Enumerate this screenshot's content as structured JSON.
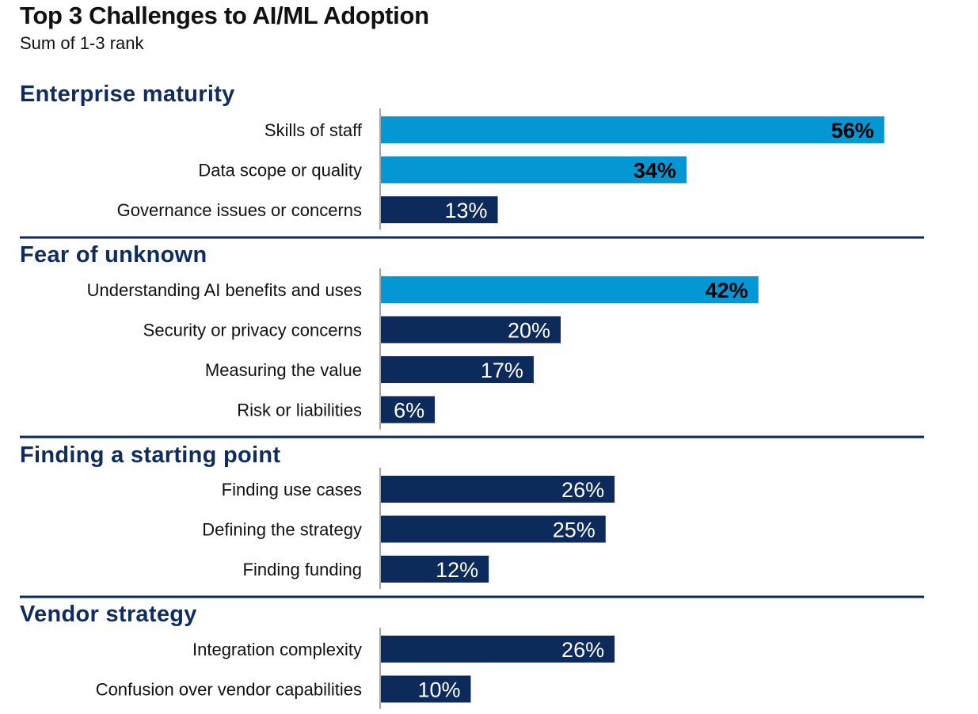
{
  "chart_data": {
    "type": "bar",
    "orientation": "horizontal",
    "title": "Top 3 Challenges to AI/ML Adoption",
    "subtitle": "Sum of 1-3 rank",
    "unit": "%",
    "xlim": [
      0,
      60
    ],
    "grid": false,
    "colors": {
      "highlight": "#0397d4",
      "default": "#0d2b5a",
      "group_title": "#0f2c5c",
      "separator": "#0d2b5a",
      "axis": "#888888"
    },
    "groups": [
      {
        "name": "Enterprise maturity",
        "items": [
          {
            "label": "Skills of staff",
            "value": 56,
            "highlight": true
          },
          {
            "label": "Data scope or quality",
            "value": 34,
            "highlight": true
          },
          {
            "label": "Governance issues or concerns",
            "value": 13,
            "highlight": false
          }
        ]
      },
      {
        "name": "Fear of unknown",
        "items": [
          {
            "label": "Understanding AI benefits and uses",
            "value": 42,
            "highlight": true
          },
          {
            "label": "Security or privacy concerns",
            "value": 20,
            "highlight": false
          },
          {
            "label": "Measuring the value",
            "value": 17,
            "highlight": false
          },
          {
            "label": "Risk or liabilities",
            "value": 6,
            "highlight": false
          }
        ]
      },
      {
        "name": "Finding a starting point",
        "items": [
          {
            "label": "Finding use cases",
            "value": 26,
            "highlight": false
          },
          {
            "label": "Defining the strategy",
            "value": 25,
            "highlight": false
          },
          {
            "label": "Finding funding",
            "value": 12,
            "highlight": false
          }
        ]
      },
      {
        "name": "Vendor strategy",
        "items": [
          {
            "label": "Integration complexity",
            "value": 26,
            "highlight": false
          },
          {
            "label": "Confusion over vendor capabilities",
            "value": 10,
            "highlight": false
          }
        ]
      }
    ]
  }
}
